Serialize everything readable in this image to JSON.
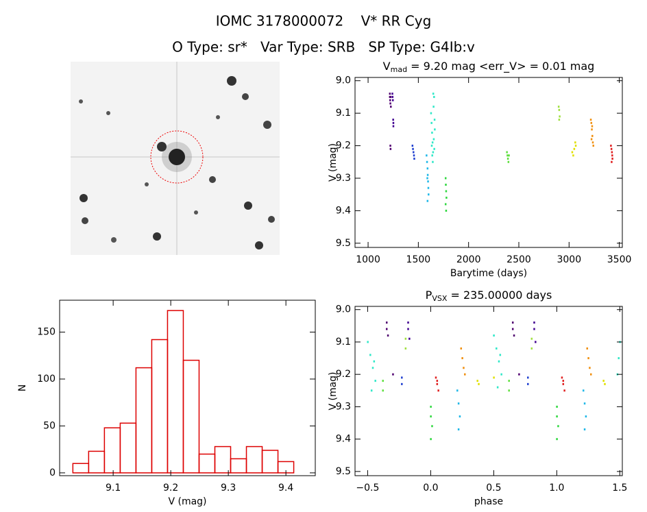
{
  "header": {
    "line1": "IOMC 3178000072    V* RR Cyg",
    "line2": "O Type: sr*   Var Type: SRB   SP Type: G4Ib:v"
  },
  "chart_data": [
    {
      "type": "scatter",
      "title": {
        "main": "V",
        "sub": "mad",
        "rest": " = 9.20 mag <err_V> = 0.01 mag"
      },
      "xlabel": "Barytime (days)",
      "ylabel": "V (mag)",
      "xlim": [
        870,
        3530
      ],
      "ylim": [
        9.513,
        8.99
      ],
      "xticks": [
        1000,
        1500,
        2000,
        2500,
        3000,
        3500
      ],
      "yticks": [
        {
          "value": 9,
          "label": "9.0"
        },
        9.1,
        9.2,
        9.3,
        9.4,
        9.5
      ],
      "series": [
        {
          "color": "#500070",
          "x": [
            1215,
            1215,
            1218,
            1220,
            1222,
            1225,
            1220,
            1222
          ],
          "values": [
            9.04,
            9.05,
            9.06,
            9.07,
            9.05,
            9.08,
            9.2,
            9.21
          ]
        },
        {
          "color": "#400090",
          "x": [
            1240,
            1242,
            1245,
            1248,
            1250,
            1250
          ],
          "values": [
            9.04,
            9.05,
            9.06,
            9.12,
            9.13,
            9.14
          ]
        },
        {
          "color": "#2040d0",
          "x": [
            1440,
            1445,
            1450,
            1455,
            1458
          ],
          "values": [
            9.2,
            9.21,
            9.22,
            9.23,
            9.24
          ]
        },
        {
          "color": "#20b8e8",
          "x": [
            1580,
            1585,
            1590,
            1592,
            1595,
            1598,
            1600,
            1590,
            1588
          ],
          "values": [
            9.23,
            9.25,
            9.27,
            9.29,
            9.31,
            9.33,
            9.35,
            9.37,
            9.3
          ]
        },
        {
          "color": "#30e8c8",
          "x": [
            1625,
            1630,
            1635,
            1640,
            1645,
            1650,
            1655,
            1660,
            1632,
            1642,
            1652,
            1662,
            1647,
            1637,
            1657
          ],
          "values": [
            9.1,
            9.13,
            9.16,
            9.19,
            9.22,
            9.08,
            9.05,
            9.12,
            9.2,
            9.25,
            9.18,
            9.15,
            9.04,
            9.23,
            9.21
          ]
        },
        {
          "color": "#30d840",
          "x": [
            1770,
            1772,
            1775,
            1778,
            1770,
            1775
          ],
          "values": [
            9.3,
            9.32,
            9.34,
            9.36,
            9.38,
            9.4
          ]
        },
        {
          "color": "#60e040",
          "x": [
            2380,
            2385,
            2390,
            2395,
            2400
          ],
          "values": [
            9.22,
            9.23,
            9.24,
            9.25,
            9.23
          ]
        },
        {
          "color": "#a0e040",
          "x": [
            2895,
            2900,
            2905,
            2900
          ],
          "values": [
            9.08,
            9.09,
            9.11,
            9.12
          ]
        },
        {
          "color": "#e0e000",
          "x": [
            3030,
            3040,
            3050,
            3060,
            3065
          ],
          "values": [
            9.22,
            9.23,
            9.21,
            9.19,
            9.2
          ]
        },
        {
          "color": "#f09010",
          "x": [
            3215,
            3220,
            3225,
            3230,
            3235,
            3240,
            3228,
            3222
          ],
          "values": [
            9.12,
            9.13,
            9.15,
            9.17,
            9.19,
            9.2,
            9.14,
            9.18
          ]
        },
        {
          "color": "#e02020",
          "x": [
            3415,
            3420,
            3425,
            3430,
            3422,
            3428
          ],
          "values": [
            9.2,
            9.21,
            9.22,
            9.24,
            9.25,
            9.23
          ]
        }
      ]
    },
    {
      "type": "scatter",
      "title": {
        "main": "P",
        "sub": "VSX",
        "rest": " = 235.00000 days"
      },
      "xlabel": "phase",
      "ylabel": "V (mag)",
      "xlim": [
        -0.6,
        1.52
      ],
      "ylim": [
        9.513,
        8.99
      ],
      "xticks": [
        {
          "value": -0.5,
          "label": "−0.5"
        },
        {
          "value": 0,
          "label": "0.0"
        },
        0.5,
        {
          "value": 1,
          "label": "1.0"
        },
        1.5
      ],
      "yticks": [
        {
          "value": 9,
          "label": "9.0"
        },
        9.1,
        9.2,
        9.3,
        9.4,
        9.5
      ],
      "series": [
        {
          "color": "#30e8c8",
          "x": [
            -0.5,
            -0.48,
            -0.46,
            -0.44,
            -0.47,
            -0.45,
            0.5,
            0.52,
            0.54,
            0.56,
            0.53,
            0.55,
            1.5,
            1.49,
            1.48
          ],
          "values": [
            9.1,
            9.14,
            9.18,
            9.22,
            9.25,
            9.16,
            9.08,
            9.12,
            9.16,
            9.2,
            9.24,
            9.14,
            9.1,
            9.15,
            9.2
          ]
        },
        {
          "color": "#500070",
          "x": [
            -0.35,
            -0.35,
            -0.34,
            0.65,
            0.65,
            0.66,
            -0.3,
            0.7
          ],
          "values": [
            9.04,
            9.06,
            9.08,
            9.04,
            9.06,
            9.08,
            9.2,
            9.2
          ]
        },
        {
          "color": "#400090",
          "x": [
            -0.18,
            -0.18,
            -0.17,
            0.82,
            0.82,
            0.83
          ],
          "values": [
            9.04,
            9.06,
            9.09,
            9.04,
            9.06,
            9.1
          ]
        },
        {
          "color": "#a0e040",
          "x": [
            -0.2,
            -0.2,
            0.8,
            0.8
          ],
          "values": [
            9.09,
            9.12,
            9.09,
            9.12
          ]
        },
        {
          "color": "#60e040",
          "x": [
            -0.38,
            -0.38,
            0.62,
            0.62
          ],
          "values": [
            9.22,
            9.25,
            9.22,
            9.25
          ]
        },
        {
          "color": "#2040d0",
          "x": [
            -0.23,
            -0.23,
            0.77,
            0.77
          ],
          "values": [
            9.21,
            9.23,
            9.21,
            9.23
          ]
        },
        {
          "color": "#30d840",
          "x": [
            0,
            0,
            0.01,
            0,
            1,
            1,
            1.01,
            1
          ],
          "values": [
            9.3,
            9.33,
            9.36,
            9.4,
            9.3,
            9.33,
            9.36,
            9.4
          ]
        },
        {
          "color": "#e02020",
          "x": [
            0.04,
            0.05,
            0.06,
            0.05,
            1.04,
            1.05,
            1.06,
            1.05
          ],
          "values": [
            9.21,
            9.23,
            9.25,
            9.22,
            9.21,
            9.23,
            9.25,
            9.22
          ]
        },
        {
          "color": "#20b8e8",
          "x": [
            0.21,
            0.22,
            0.23,
            0.22,
            1.21,
            1.22,
            1.23,
            1.22
          ],
          "values": [
            9.25,
            9.29,
            9.33,
            9.37,
            9.25,
            9.29,
            9.33,
            9.37
          ]
        },
        {
          "color": "#f09010",
          "x": [
            0.24,
            0.25,
            0.26,
            0.27,
            1.24,
            1.25,
            1.26,
            1.27
          ],
          "values": [
            9.12,
            9.15,
            9.18,
            9.2,
            9.12,
            9.15,
            9.18,
            9.2
          ]
        },
        {
          "color": "#e0e000",
          "x": [
            0.37,
            0.38,
            0.5,
            1.37,
            1.38
          ],
          "values": [
            9.22,
            9.23,
            9.21,
            9.22,
            9.23
          ]
        }
      ]
    },
    {
      "type": "histogram",
      "xlabel": "V (mag)",
      "ylabel": "N",
      "xlim": [
        9.007,
        9.451
      ],
      "ylim": [
        -3,
        184
      ],
      "xticks": [
        9.1,
        9.2,
        9.3,
        9.4
      ],
      "yticks": [
        0,
        50,
        100,
        150
      ],
      "color": "#dd0000",
      "bins": [
        9.03,
        9.0574,
        9.0848,
        9.1122,
        9.1396,
        9.167,
        9.1944,
        9.2218,
        9.2492,
        9.2766,
        9.304,
        9.3314,
        9.3588,
        9.3862,
        9.4136
      ],
      "values": [
        10,
        23,
        48,
        53,
        112,
        142,
        173,
        120,
        20,
        28,
        15,
        28,
        24,
        12
      ]
    }
  ]
}
